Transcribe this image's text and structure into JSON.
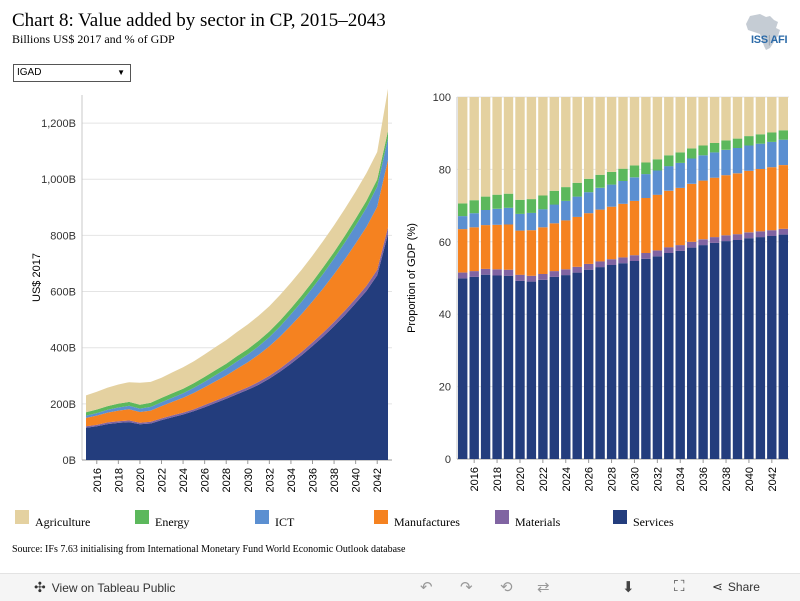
{
  "header": {
    "title": "Chart 8: Value added by sector in CP, 2015–2043",
    "subtitle": "Billions US$ 2017 and % of GDP",
    "logo_text": "ISS",
    "logo_sep": "|",
    "logo_text2": "AFI"
  },
  "filter": {
    "selected": "IGAD",
    "caret": "▼"
  },
  "colors": {
    "agriculture": "#e4d1a0",
    "energy": "#5cb85c",
    "ict": "#5b8fd1",
    "manufactures": "#f58220",
    "materials": "#8064a2",
    "services": "#233d7d"
  },
  "chart_data": [
    {
      "type": "area",
      "stacked": true,
      "ylabel": "US$ 2017",
      "ylim": [
        0,
        1300
      ],
      "yticks": [
        0,
        200,
        400,
        600,
        800,
        1000,
        1200
      ],
      "ytick_labels": [
        "0B",
        "200B",
        "400B",
        "600B",
        "800B",
        "1,000B",
        "1,200B"
      ],
      "x": [
        2015,
        2016,
        2017,
        2018,
        2019,
        2020,
        2021,
        2022,
        2023,
        2024,
        2025,
        2026,
        2027,
        2028,
        2029,
        2030,
        2031,
        2032,
        2033,
        2034,
        2035,
        2036,
        2037,
        2038,
        2039,
        2040,
        2041,
        2042,
        2043
      ],
      "xtick_labels": [
        "2016",
        "2018",
        "2020",
        "2022",
        "2024",
        "2026",
        "2028",
        "2030",
        "2032",
        "2034",
        "2036",
        "2038",
        "2040",
        "2042"
      ],
      "grid": true,
      "series": [
        {
          "name": "Services",
          "key": "services",
          "values": [
            115,
            120,
            128,
            132,
            135,
            127,
            130,
            142,
            152,
            162,
            174,
            188,
            203,
            218,
            234,
            250,
            268,
            290,
            315,
            343,
            373,
            406,
            440,
            477,
            516,
            558,
            602,
            658,
            805
          ]
        },
        {
          "name": "Materials",
          "key": "materials",
          "values": [
            5,
            5,
            6,
            6,
            6,
            6,
            6,
            6,
            7,
            7,
            7,
            8,
            8,
            8,
            9,
            9,
            10,
            10,
            11,
            12,
            12,
            13,
            14,
            15,
            16,
            17,
            18,
            19,
            24
          ]
        },
        {
          "name": "Manufactures",
          "key": "manufactures",
          "values": [
            30,
            33,
            35,
            38,
            40,
            38,
            40,
            44,
            48,
            53,
            58,
            63,
            69,
            75,
            82,
            89,
            97,
            105,
            114,
            124,
            135,
            146,
            158,
            170,
            183,
            196,
            210,
            225,
            240
          ]
        },
        {
          "name": "ICT",
          "key": "ict",
          "values": [
            8,
            9,
            10,
            11,
            12,
            12,
            13,
            14,
            15,
            16,
            18,
            20,
            22,
            24,
            26,
            28,
            30,
            33,
            36,
            40,
            44,
            48,
            52,
            56,
            60,
            64,
            68,
            72,
            77
          ]
        },
        {
          "name": "Energy",
          "key": "energy",
          "values": [
            12,
            13,
            13,
            14,
            14,
            14,
            15,
            15,
            16,
            16,
            17,
            17,
            18,
            18,
            19,
            19,
            20,
            20,
            21,
            21,
            22,
            22,
            23,
            23,
            24,
            24,
            25,
            25,
            26
          ]
        },
        {
          "name": "Agriculture",
          "key": "agriculture",
          "values": [
            60,
            63,
            66,
            68,
            70,
            78,
            74,
            72,
            74,
            76,
            78,
            80,
            82,
            84,
            86,
            88,
            89,
            90,
            91,
            92,
            92,
            93,
            94,
            95,
            96,
            97,
            98,
            98,
            150
          ]
        }
      ]
    },
    {
      "type": "bar",
      "stacked": true,
      "ylabel": "Proportion of GDP (%)",
      "ylim": [
        0,
        100
      ],
      "yticks": [
        0,
        20,
        40,
        60,
        80,
        100
      ],
      "ytick_labels": [
        "0",
        "20",
        "40",
        "60",
        "80",
        "100"
      ],
      "x": [
        2015,
        2016,
        2017,
        2018,
        2019,
        2020,
        2021,
        2022,
        2023,
        2024,
        2025,
        2026,
        2027,
        2028,
        2029,
        2030,
        2031,
        2032,
        2033,
        2034,
        2035,
        2036,
        2037,
        2038,
        2039,
        2040,
        2041,
        2042,
        2043
      ],
      "xtick_labels": [
        "2016",
        "2018",
        "2020",
        "2022",
        "2024",
        "2026",
        "2028",
        "2030",
        "2032",
        "2034",
        "2036",
        "2038",
        "2040",
        "2042"
      ],
      "series": [
        {
          "name": "Services",
          "key": "services",
          "values": [
            49.9,
            50.3,
            50.9,
            50.7,
            50.6,
            49.2,
            49.0,
            49.5,
            50.3,
            50.8,
            51.5,
            52.3,
            53.0,
            53.6,
            54.1,
            54.7,
            55.3,
            56.0,
            56.9,
            57.5,
            58.4,
            59.1,
            59.7,
            60.2,
            60.5,
            61.0,
            61.3,
            61.6,
            62.0
          ]
        },
        {
          "name": "Materials",
          "key": "materials",
          "values": [
            1.6,
            1.6,
            1.6,
            1.7,
            1.7,
            1.7,
            1.6,
            1.6,
            1.6,
            1.6,
            1.6,
            1.6,
            1.6,
            1.6,
            1.6,
            1.6,
            1.6,
            1.6,
            1.6,
            1.6,
            1.6,
            1.6,
            1.6,
            1.6,
            1.6,
            1.6,
            1.6,
            1.6,
            1.6
          ]
        },
        {
          "name": "Manufactures",
          "key": "manufactures",
          "values": [
            12.0,
            12.1,
            12.1,
            12.3,
            12.5,
            12.2,
            12.6,
            12.9,
            13.2,
            13.5,
            13.8,
            14.0,
            14.3,
            14.5,
            14.8,
            15.0,
            15.2,
            15.4,
            15.6,
            15.8,
            16.0,
            16.2,
            16.4,
            16.6,
            16.8,
            17.0,
            17.2,
            17.4,
            17.6
          ]
        },
        {
          "name": "ICT",
          "key": "ict",
          "values": [
            3.6,
            3.9,
            4.2,
            4.4,
            4.6,
            4.6,
            4.8,
            5.0,
            5.2,
            5.4,
            5.6,
            5.8,
            6.0,
            6.1,
            6.3,
            6.5,
            6.6,
            6.7,
            6.8,
            6.9,
            7.0,
            7.0,
            7.0,
            7.0,
            7.0,
            7.0,
            7.0,
            7.0,
            7.0
          ]
        },
        {
          "name": "Energy",
          "key": "energy",
          "values": [
            3.5,
            3.6,
            3.7,
            3.9,
            3.9,
            3.9,
            3.8,
            3.8,
            3.8,
            3.8,
            3.8,
            3.7,
            3.6,
            3.5,
            3.4,
            3.3,
            3.2,
            3.1,
            3.0,
            2.9,
            2.8,
            2.7,
            2.6,
            2.6,
            2.6,
            2.6,
            2.6,
            2.6,
            2.6
          ]
        },
        {
          "name": "Agriculture",
          "key": "agriculture",
          "values": [
            29.4,
            28.5,
            27.5,
            27.0,
            26.7,
            28.4,
            28.2,
            27.2,
            25.9,
            24.9,
            23.7,
            22.6,
            21.5,
            20.7,
            19.8,
            18.9,
            18.1,
            17.2,
            16.1,
            15.3,
            14.2,
            13.4,
            12.7,
            12.0,
            11.5,
            10.8,
            10.3,
            9.8,
            9.2
          ]
        }
      ]
    }
  ],
  "legend": [
    {
      "label": "Agriculture",
      "key": "agriculture"
    },
    {
      "label": "Energy",
      "key": "energy"
    },
    {
      "label": "ICT",
      "key": "ict"
    },
    {
      "label": "Manufactures",
      "key": "manufactures"
    },
    {
      "label": "Materials",
      "key": "materials"
    },
    {
      "label": "Services",
      "key": "services"
    }
  ],
  "source": "Source: IFs 7.63 initialising from International Monetary Fund World Economic Outlook database",
  "footer": {
    "view_label": "View on Tableau Public",
    "share_label": "Share",
    "icons": [
      "undo-icon",
      "redo-icon",
      "revert-icon",
      "refresh-icon",
      "download-icon",
      "fullscreen-icon",
      "share-icon"
    ]
  }
}
